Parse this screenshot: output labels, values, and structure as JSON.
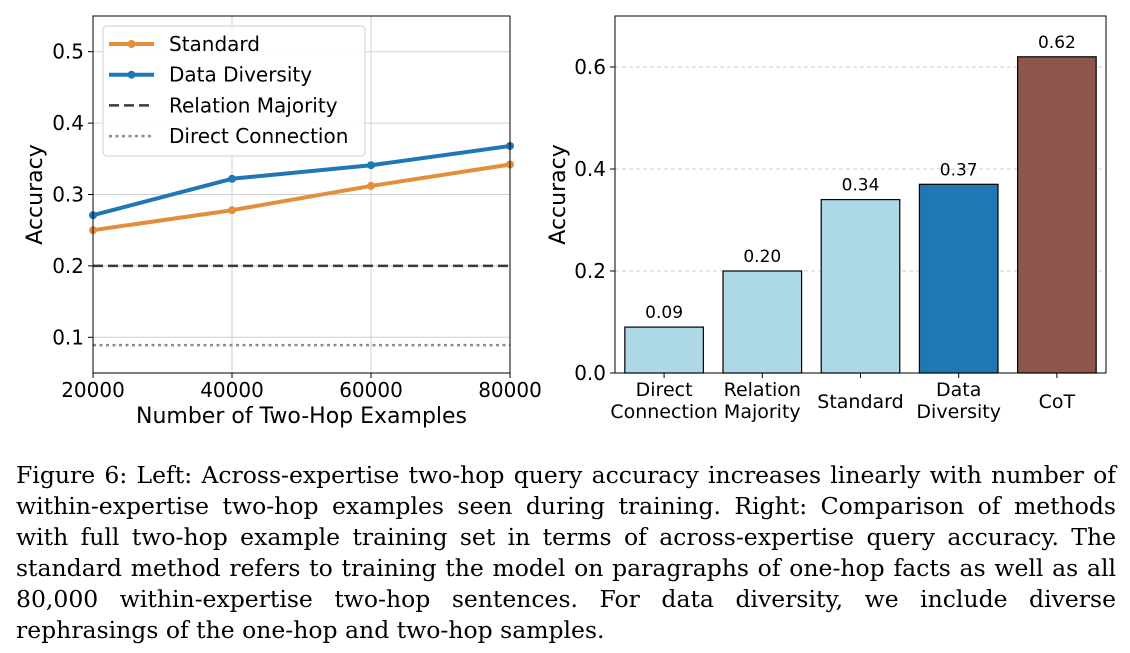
{
  "chart_data": [
    {
      "type": "line",
      "xlabel": "Number of Two-Hop Examples",
      "ylabel": "Accuracy",
      "x": [
        20000,
        40000,
        60000,
        80000
      ],
      "xticks": [
        "20000",
        "40000",
        "60000",
        "80000"
      ],
      "xlim": [
        20000,
        80000
      ],
      "ylim": [
        0.05,
        0.55
      ],
      "yticks": [
        "0.1",
        "0.2",
        "0.3",
        "0.4",
        "0.5"
      ],
      "grid": true,
      "legend_position": "top-left",
      "series": [
        {
          "name": "Standard",
          "values": [
            0.25,
            0.278,
            0.312,
            0.342
          ],
          "color": "#E28F3D",
          "style": "solid",
          "marker": "circle"
        },
        {
          "name": "Data Diversity",
          "values": [
            0.271,
            0.322,
            0.341,
            0.368
          ],
          "color": "#1F77B4",
          "style": "solid",
          "marker": "circle"
        },
        {
          "name": "Relation Majority",
          "constant": 0.2,
          "color": "#3a3a3a",
          "style": "dashed"
        },
        {
          "name": "Direct Connection",
          "constant": 0.089,
          "color": "#8c8c8c",
          "style": "dotted"
        }
      ]
    },
    {
      "type": "bar",
      "ylabel": "Accuracy",
      "categories": [
        [
          "Direct",
          "Connection"
        ],
        [
          "Relation",
          "Majority"
        ],
        [
          "Standard"
        ],
        [
          "Data",
          "Diversity"
        ],
        [
          "CoT"
        ]
      ],
      "values": [
        0.09,
        0.2,
        0.34,
        0.37,
        0.62
      ],
      "data_labels": [
        "0.09",
        "0.20",
        "0.34",
        "0.37",
        "0.62"
      ],
      "colors": [
        "#ADD8E6",
        "#ADD8E6",
        "#ADD8E6",
        "#1F77B4",
        "#8C564B"
      ],
      "ylim": [
        0,
        0.7
      ],
      "yticks": [
        "0.0",
        "0.2",
        "0.4",
        "0.6"
      ],
      "grid": "y-dashed"
    }
  ],
  "caption": "Figure 6: Left: Across-expertise two-hop query accuracy increases linearly with number of within-expertise two-hop examples seen during training. Right: Comparison of methods with full two-hop example training set in terms of across-expertise query accuracy. The standard method refers to training the model on paragraphs of one-hop facts as well as all 80,000 within-expertise two-hop sentences. For data diversity, we include diverse rephrasings of the one-hop and two-hop samples."
}
